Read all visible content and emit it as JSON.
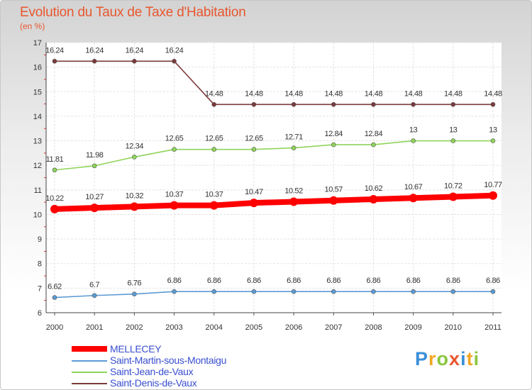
{
  "header": {
    "title": "Evolution du Taux de Taxe d'Habitation",
    "unit": "(en %)"
  },
  "chart_data": {
    "type": "line",
    "x": [
      2000,
      2001,
      2002,
      2003,
      2004,
      2005,
      2006,
      2007,
      2008,
      2009,
      2010,
      2011
    ],
    "ylim": [
      6,
      17
    ],
    "yticks": [
      6,
      7,
      8,
      9,
      10,
      11,
      12,
      13,
      14,
      15,
      16,
      17
    ],
    "grid": true,
    "legend_position": "bottom-left",
    "series": [
      {
        "name": "MELLECEY",
        "color": "#ff0000",
        "values": [
          10.22,
          10.27,
          10.32,
          10.37,
          10.37,
          10.47,
          10.52,
          10.57,
          10.62,
          10.67,
          10.72,
          10.77
        ],
        "labels": [
          "10.22",
          "10.27",
          "10.32",
          "10.37",
          "10.37",
          "10.47",
          "10.52",
          "10.57",
          "10.62",
          "10.67",
          "10.72",
          "10.77"
        ]
      },
      {
        "name": "Saint-Martin-sous-Montaigu",
        "color": "#5b9bd5",
        "values": [
          6.62,
          6.7,
          6.76,
          6.86,
          6.86,
          6.86,
          6.86,
          6.86,
          6.86,
          6.86,
          6.86,
          6.86
        ],
        "labels": [
          "6.62",
          "6.7",
          "6.76",
          "6.86",
          "6.86",
          "6.86",
          "6.86",
          "6.86",
          "6.86",
          "6.86",
          "6.86",
          "6.86"
        ]
      },
      {
        "name": "Saint-Jean-de-Vaux",
        "color": "#8fd45a",
        "values": [
          11.81,
          11.98,
          12.34,
          12.65,
          12.65,
          12.65,
          12.71,
          12.84,
          12.84,
          13,
          13,
          13
        ],
        "labels": [
          "11.81",
          "11.98",
          "12.34",
          "12.65",
          "12.65",
          "12.65",
          "12.71",
          "12.84",
          "12.84",
          "13",
          "13",
          "13"
        ]
      },
      {
        "name": "Saint-Denis-de-Vaux",
        "color": "#7b3a3a",
        "values": [
          16.24,
          16.24,
          16.24,
          16.24,
          14.48,
          14.48,
          14.48,
          14.48,
          14.48,
          14.48,
          14.48,
          14.48
        ],
        "labels": [
          "16.24",
          "16.24",
          "16.24",
          "16.24",
          "14.48",
          "14.48",
          "14.48",
          "14.48",
          "14.48",
          "14.48",
          "14.48",
          "14.48"
        ]
      }
    ]
  },
  "logo": {
    "letters": [
      "P",
      "r",
      "o",
      "x",
      "i",
      "t",
      "i"
    ],
    "colors": [
      "#3b8fd8",
      "#f3a623",
      "#8cc63f",
      "#e8572e",
      "#3b8fd8",
      "#f3a623",
      "#8cc63f"
    ]
  }
}
